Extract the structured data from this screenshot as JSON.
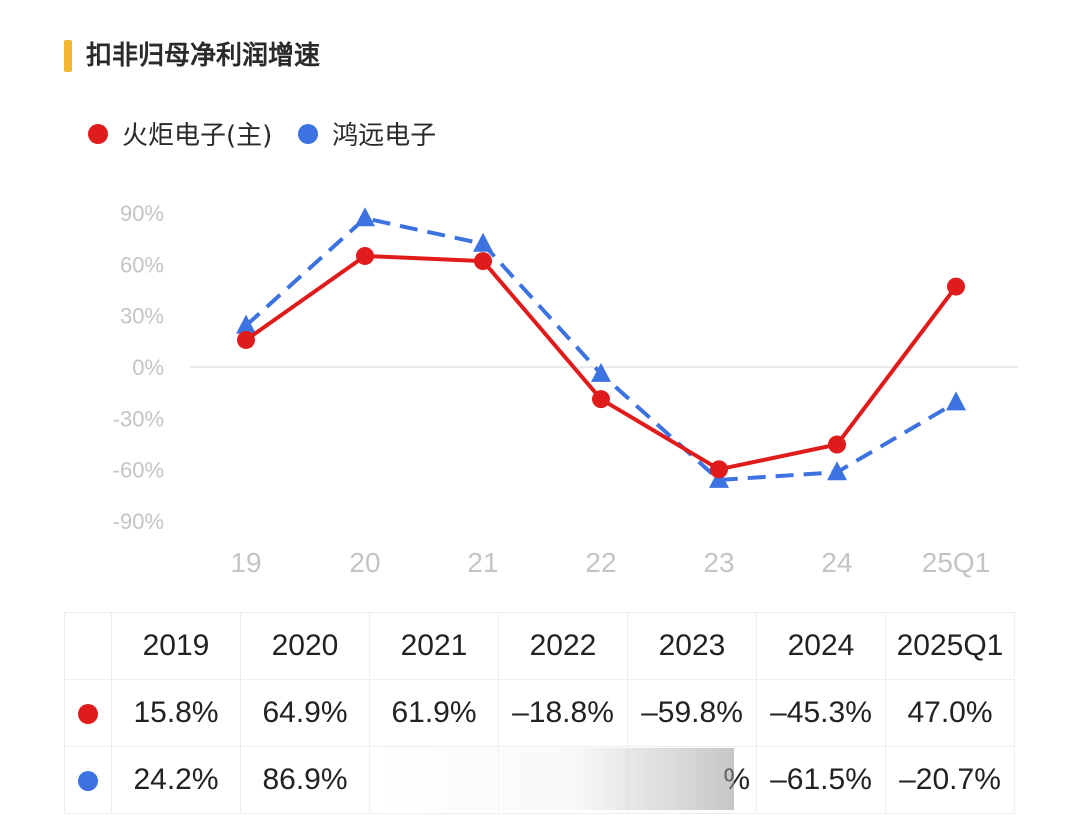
{
  "title": "扣非归母净利润增速",
  "legend": [
    {
      "name": "火炬电子(主)",
      "color": "#e01b1b"
    },
    {
      "name": "鸿远电子",
      "color": "#3d73e0"
    }
  ],
  "chart_data": {
    "type": "line",
    "categories": [
      "19",
      "20",
      "21",
      "22",
      "23",
      "24",
      "25Q1"
    ],
    "yticks": [
      "90%",
      "60%",
      "30%",
      "0%",
      "-30%",
      "-60%",
      "-90%"
    ],
    "ylim": [
      -90,
      90
    ],
    "series": [
      {
        "name": "火炬电子(主)",
        "color": "#e01b1b",
        "style": "solid",
        "marker": "circle",
        "values": [
          15.8,
          64.9,
          61.9,
          -18.8,
          -59.8,
          -45.3,
          47.0
        ]
      },
      {
        "name": "鸿远电子",
        "color": "#3d73e0",
        "style": "dashed",
        "marker": "triangle",
        "values": [
          24.2,
          86.9,
          72.0,
          -4.0,
          -66.0,
          -61.5,
          -20.7
        ]
      }
    ]
  },
  "table": {
    "headers": [
      "2019",
      "2020",
      "2021",
      "2022",
      "2023",
      "2024",
      "2025Q1"
    ],
    "rows": [
      {
        "marker_color": "#e01b1b",
        "cells": [
          "15.8%",
          "64.9%",
          "61.9%",
          "–18.8%",
          "–59.8%",
          "–45.3%",
          "47.0%"
        ]
      },
      {
        "marker_color": "#3d73e0",
        "cells": [
          "24.2%",
          "86.9%",
          "",
          "",
          "%",
          "–61.5%",
          "–20.7%"
        ]
      }
    ]
  }
}
